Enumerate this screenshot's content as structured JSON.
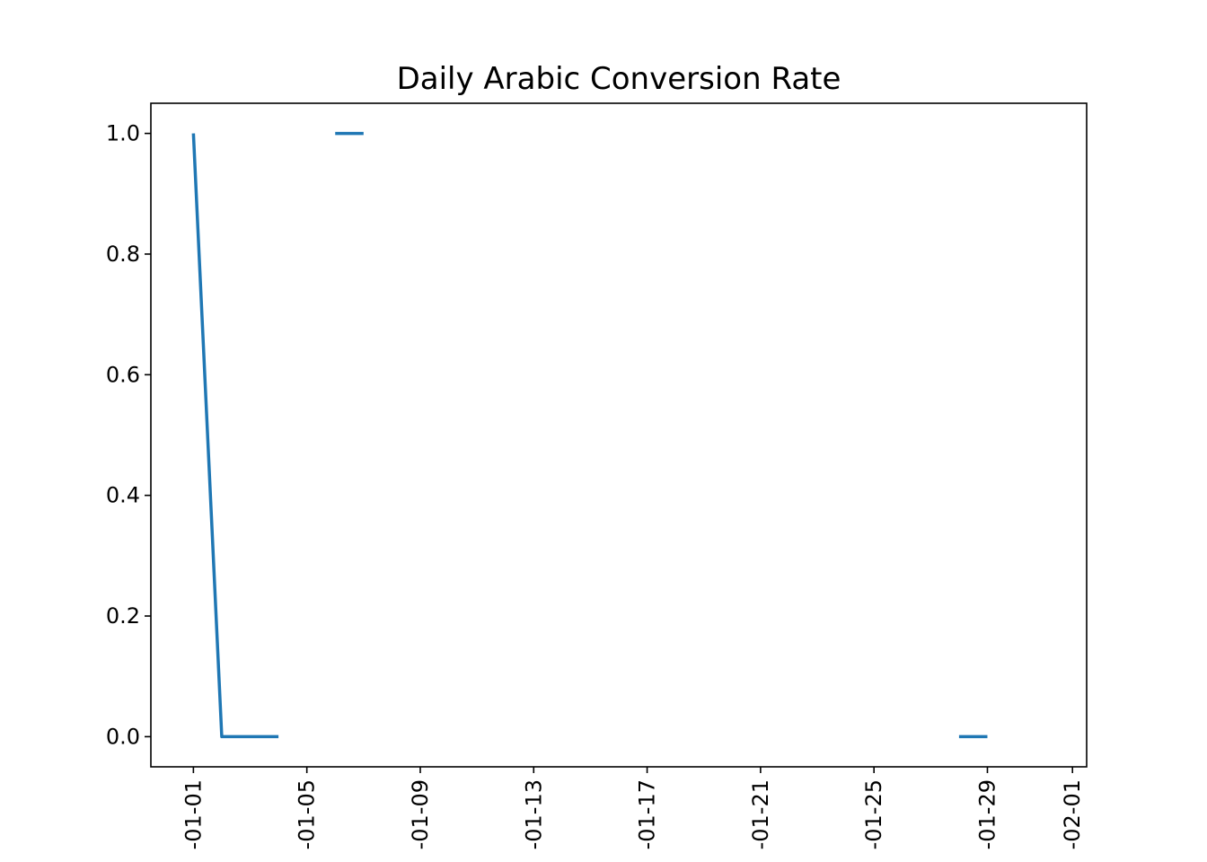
{
  "chart_data": {
    "type": "line",
    "title": "Daily Arabic Conversion Rate",
    "xlabel": "",
    "ylabel": "",
    "x": [
      "01-01",
      "01-02",
      "01-03",
      "01-04",
      "01-05",
      "01-06",
      "01-07",
      "01-08",
      "01-09",
      "01-10",
      "01-11",
      "01-12",
      "01-13",
      "01-14",
      "01-15",
      "01-16",
      "01-17",
      "01-18",
      "01-19",
      "01-20",
      "01-21",
      "01-22",
      "01-23",
      "01-24",
      "01-25",
      "01-26",
      "01-27",
      "01-28",
      "01-29",
      "01-30",
      "01-31"
    ],
    "series": [
      {
        "values": [
          1.0,
          0.0,
          0.0,
          0.0,
          null,
          1.0,
          1.0,
          null,
          null,
          null,
          null,
          null,
          null,
          null,
          null,
          null,
          null,
          null,
          null,
          null,
          null,
          null,
          null,
          null,
          null,
          null,
          null,
          0.0,
          0.0,
          null,
          null
        ],
        "color": "#1f77b4"
      }
    ],
    "ylim": [
      -0.05,
      1.05
    ],
    "yticks": [
      0.0,
      0.2,
      0.4,
      0.6,
      0.8,
      1.0
    ],
    "ytick_labels": [
      "0.0",
      "0.2",
      "0.4",
      "0.6",
      "0.8",
      "1.0"
    ],
    "xticks": [
      {
        "day": 0,
        "label": "-01-01"
      },
      {
        "day": 4,
        "label": "-01-05"
      },
      {
        "day": 8,
        "label": "-01-09"
      },
      {
        "day": 12,
        "label": "-01-13"
      },
      {
        "day": 16,
        "label": "-01-17"
      },
      {
        "day": 20,
        "label": "-01-21"
      },
      {
        "day": 24,
        "label": "-01-25"
      },
      {
        "day": 28,
        "label": "-01-29"
      },
      {
        "day": 31,
        "label": "-02-01"
      }
    ],
    "grid": false,
    "legend": "none"
  }
}
